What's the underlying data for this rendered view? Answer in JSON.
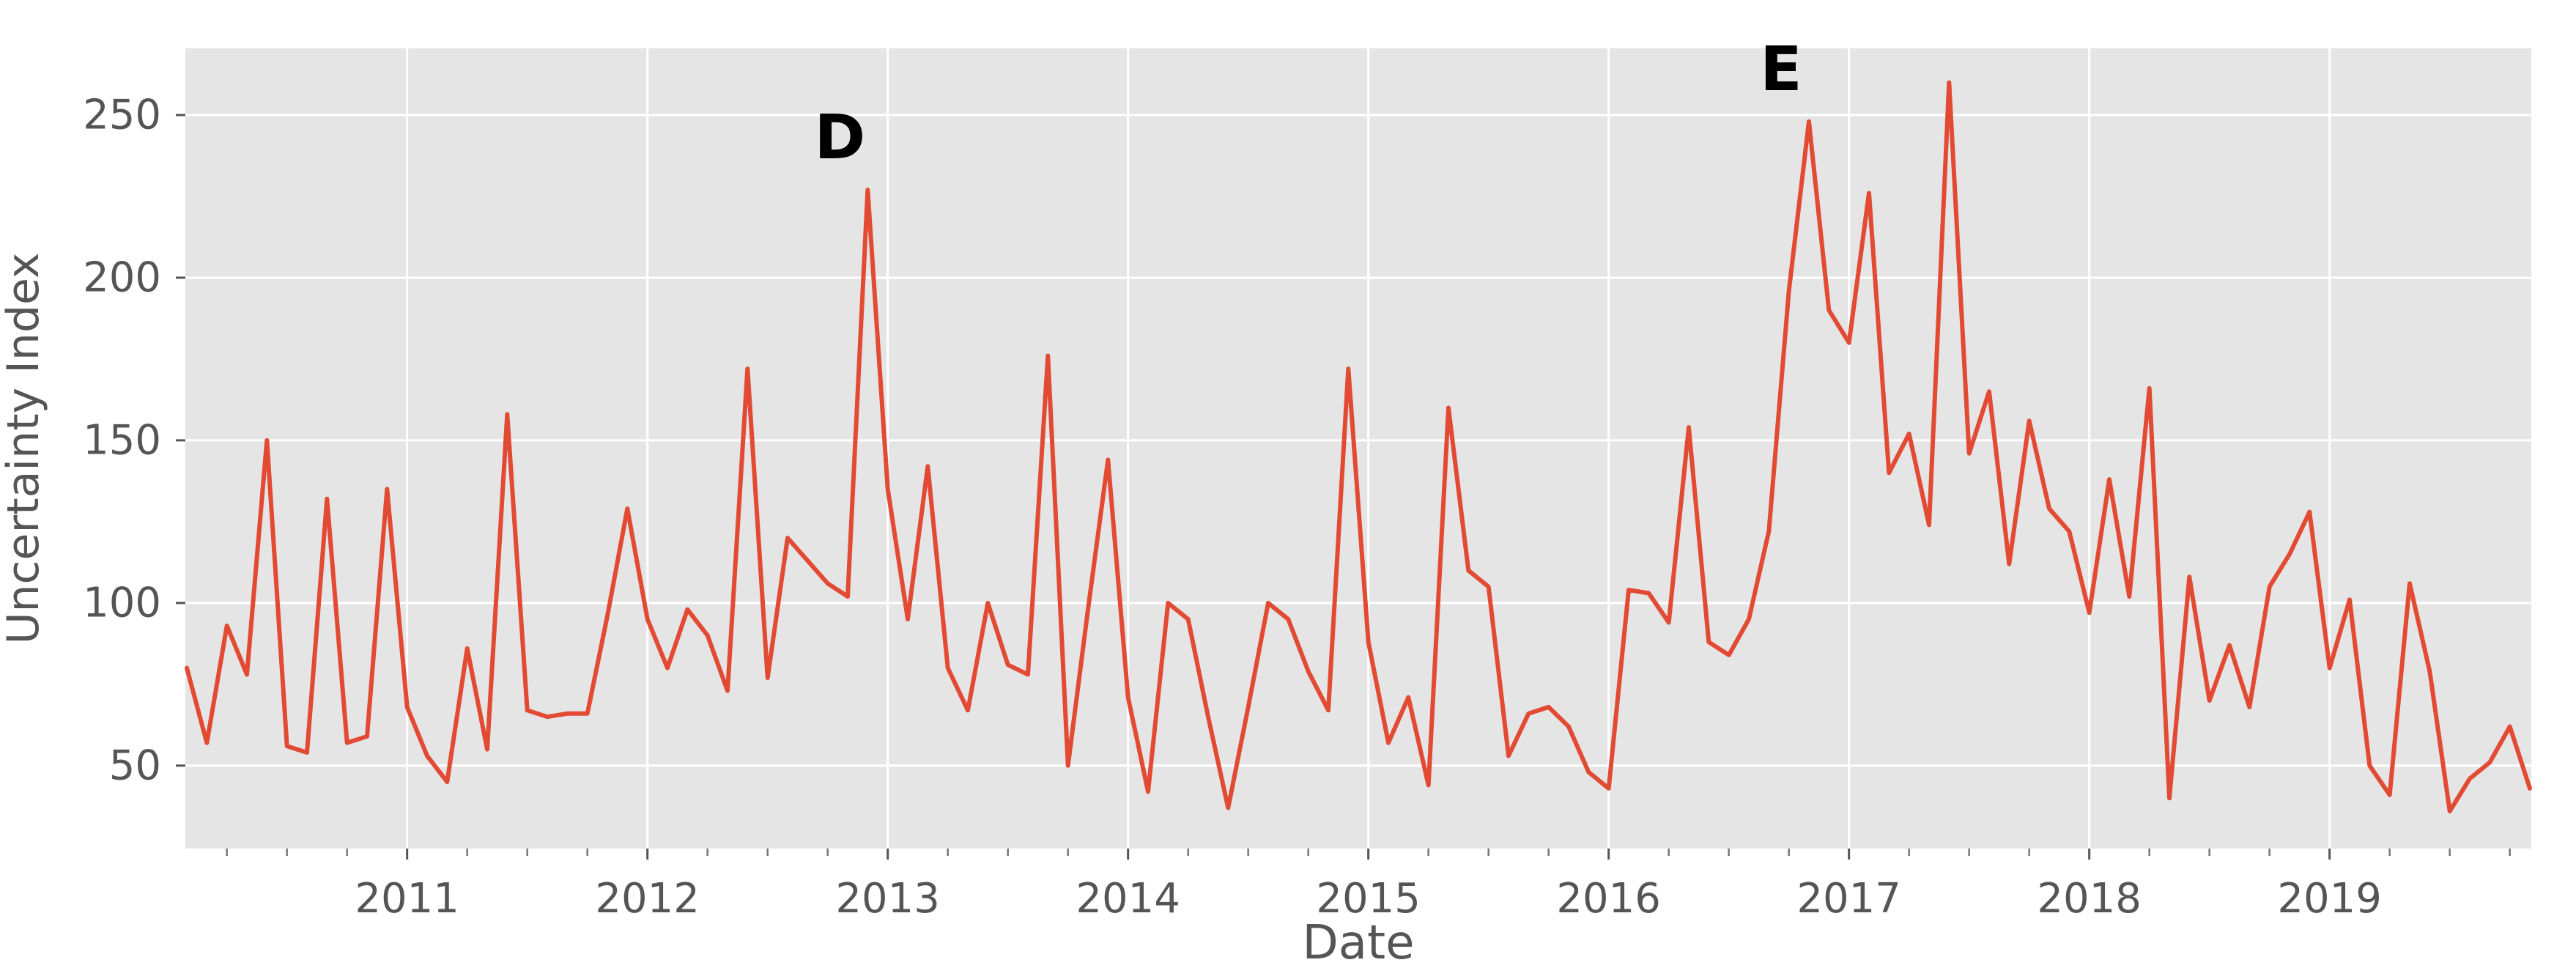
{
  "chart_data": {
    "type": "line",
    "title": "",
    "xlabel": "Date",
    "ylabel": "Uncertainty Index",
    "x_start_month": "2010-02",
    "x_end_month": "2019-11",
    "x_tick_years": [
      2011,
      2012,
      2013,
      2014,
      2015,
      2016,
      2017,
      2018,
      2019
    ],
    "yticks": [
      50,
      100,
      150,
      200,
      250
    ],
    "ylim": [
      24.5,
      270.5
    ],
    "grid": "major, white on grey panel",
    "legend_position": "none",
    "series": [
      {
        "name": "Uncertainty Index",
        "color": "#E24A33",
        "values": [
          80,
          57,
          93,
          78,
          150,
          56,
          54,
          132,
          57,
          59,
          135,
          68,
          53,
          45,
          86,
          55,
          158,
          67,
          65,
          66,
          66,
          96,
          129,
          95,
          80,
          98,
          90,
          73,
          172,
          77,
          120,
          113,
          106,
          102,
          227,
          135,
          95,
          142,
          80,
          67,
          100,
          81,
          78,
          176,
          50,
          98,
          144,
          71,
          42,
          100,
          95,
          65,
          37,
          68,
          100,
          95,
          79,
          67,
          172,
          88,
          57,
          71,
          44,
          160,
          110,
          105,
          53,
          66,
          68,
          62,
          48,
          43,
          104,
          103,
          94,
          154,
          88,
          84,
          95,
          122,
          196,
          248,
          190,
          180,
          226,
          140,
          152,
          124,
          260,
          146,
          165,
          112,
          156,
          129,
          122,
          97,
          138,
          102,
          166,
          40,
          108,
          70,
          87,
          68,
          105,
          115,
          128,
          80,
          101,
          50,
          41,
          106,
          79,
          36,
          46,
          51,
          62,
          43
        ]
      }
    ],
    "annotations": [
      {
        "label": "D",
        "month": "2012-12",
        "value": 227
      },
      {
        "label": "E",
        "month": "2016-11",
        "value": 248
      }
    ]
  },
  "style": {
    "panel_bg": "#E5E5E5",
    "grid_color": "#FFFFFF",
    "line_color": "#E24A33",
    "text_color": "#555555",
    "tick_color": "#555555",
    "annotation_color": "#000000"
  }
}
